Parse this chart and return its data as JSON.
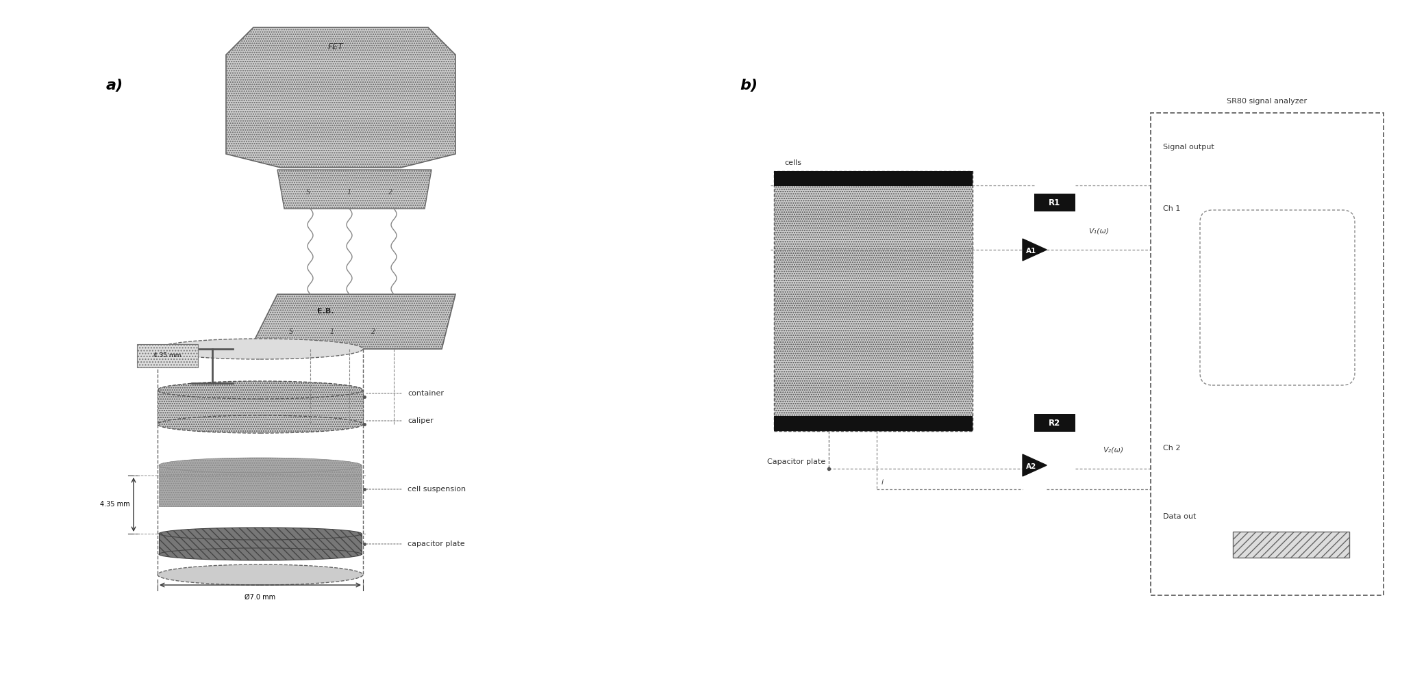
{
  "bg_color": "#ffffff",
  "panel_a_label": "a)",
  "panel_b_label": "b)",
  "label_fontsize": 16,
  "small_fontsize": 8,
  "fet_label": "FET",
  "eb_label": "E.B.",
  "container_label": "container",
  "caliper_label": "caliper",
  "cell_susp_label": "cell suspension",
  "cap_plate_label": "capacitor plate",
  "dim1_label": "4.35 mm",
  "dim2_label": "Ø7.0 mm",
  "dim3_label": "4.35 mm",
  "sr80_label": "SR80 signal analyzer",
  "sig_out_label": "Signal output",
  "ch1_label": "Ch 1",
  "ch2_label": "Ch 2",
  "data_out_label": "Data out",
  "cells_label": "cells",
  "cap_plate_b_label": "Capacitor plate",
  "r1_label": "R1",
  "a1_label": "A1",
  "r2_label": "R2",
  "a2_label": "A2",
  "v1_label": "V₁(ω)",
  "v2_label": "V₂(ω)",
  "i_label": "i",
  "s_label": "S",
  "one_label": "1",
  "two_label": "2"
}
